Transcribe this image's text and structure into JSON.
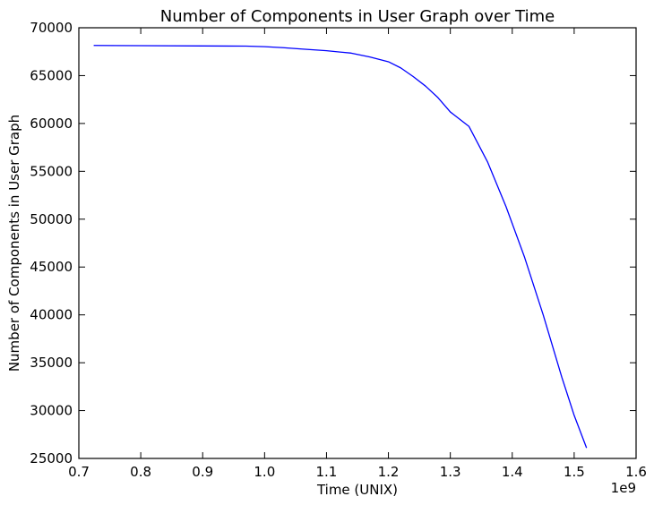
{
  "chart_data": {
    "type": "line",
    "title": "Number of Components in User Graph over Time",
    "xlabel": "Time (UNIX)",
    "ylabel": "Number of Components in User Graph",
    "x_offset_label": "1e9",
    "xlim": [
      0.7,
      1.6
    ],
    "ylim": [
      25000,
      70000
    ],
    "xticks": [
      0.7,
      0.8,
      0.9,
      1.0,
      1.1,
      1.2,
      1.3,
      1.4,
      1.5,
      1.6
    ],
    "xtick_labels": [
      "0.7",
      "0.8",
      "0.9",
      "1.0",
      "1.1",
      "1.2",
      "1.3",
      "1.4",
      "1.5",
      "1.6"
    ],
    "yticks": [
      25000,
      30000,
      35000,
      40000,
      45000,
      50000,
      55000,
      60000,
      65000,
      70000
    ],
    "ytick_labels": [
      "25000",
      "30000",
      "35000",
      "40000",
      "45000",
      "50000",
      "55000",
      "60000",
      "65000",
      "70000"
    ],
    "grid": false,
    "series": [
      {
        "color": "#0000ff",
        "x": [
          0.724,
          0.8,
          0.9,
          0.97,
          1.0,
          1.03,
          1.06,
          1.1,
          1.14,
          1.17,
          1.2,
          1.22,
          1.24,
          1.26,
          1.28,
          1.3,
          1.33,
          1.36,
          1.39,
          1.42,
          1.45,
          1.48,
          1.5,
          1.52
        ],
        "y": [
          68150,
          68130,
          68100,
          68080,
          68020,
          67920,
          67780,
          67600,
          67350,
          66950,
          66450,
          65800,
          64900,
          63900,
          62700,
          61200,
          59700,
          56000,
          51300,
          46000,
          40000,
          33500,
          29500,
          26100
        ]
      }
    ]
  }
}
